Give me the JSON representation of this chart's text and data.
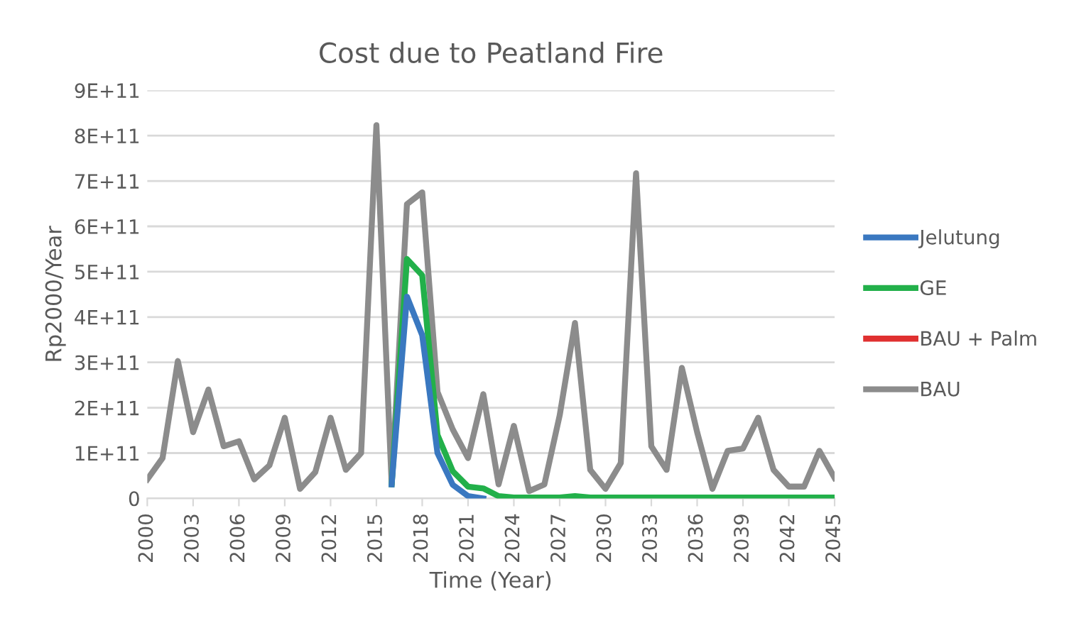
{
  "chart_data": {
    "type": "line",
    "title": "Cost due to Peatland Fire",
    "xlabel": "Time (Year)",
    "ylabel": "Rp2000/Year",
    "x": [
      2000,
      2001,
      2002,
      2003,
      2004,
      2005,
      2006,
      2007,
      2008,
      2009,
      2010,
      2011,
      2012,
      2013,
      2014,
      2015,
      2016,
      2017,
      2018,
      2019,
      2020,
      2021,
      2022,
      2023,
      2024,
      2025,
      2026,
      2027,
      2028,
      2029,
      2030,
      2031,
      2032,
      2033,
      2034,
      2035,
      2036,
      2037,
      2038,
      2039,
      2040,
      2041,
      2042,
      2043,
      2044,
      2045
    ],
    "series": [
      {
        "name": "Jelutung",
        "color": "#3a78c0",
        "values": [
          null,
          null,
          null,
          null,
          null,
          null,
          null,
          null,
          null,
          null,
          null,
          null,
          null,
          null,
          null,
          null,
          31000000000.0,
          445000000000.0,
          360000000000.0,
          100000000000.0,
          30000000000.0,
          5000000000.0,
          0,
          null,
          null,
          null,
          null,
          null,
          null,
          null,
          null,
          null,
          null,
          null,
          null,
          null,
          null,
          null,
          null,
          null,
          null,
          null,
          null,
          null,
          null,
          null
        ]
      },
      {
        "name": "GE",
        "color": "#22b04a",
        "values": [
          null,
          null,
          null,
          null,
          null,
          null,
          null,
          null,
          null,
          null,
          null,
          null,
          null,
          null,
          null,
          null,
          31000000000.0,
          528000000000.0,
          492000000000.0,
          140000000000.0,
          60000000000.0,
          26000000000.0,
          22000000000.0,
          5000000000.0,
          2000000000.0,
          2000000000.0,
          2000000000.0,
          2000000000.0,
          5000000000.0,
          2000000000.0,
          2000000000.0,
          2000000000.0,
          2000000000.0,
          2000000000.0,
          2000000000.0,
          2000000000.0,
          2000000000.0,
          2000000000.0,
          2000000000.0,
          2000000000.0,
          2000000000.0,
          2000000000.0,
          2000000000.0,
          2000000000.0,
          2000000000.0,
          2000000000.0
        ]
      },
      {
        "name": "BAU + Palm",
        "color": "#e03030",
        "values": [
          null,
          null,
          null,
          null,
          null,
          null,
          null,
          null,
          null,
          null,
          null,
          null,
          null,
          null,
          null,
          null,
          null,
          null,
          null,
          null,
          null,
          null,
          null,
          null,
          null,
          null,
          null,
          null,
          null,
          null,
          null,
          null,
          null,
          null,
          null,
          null,
          null,
          null,
          null,
          null,
          null,
          null,
          null,
          null,
          null,
          null
        ]
      },
      {
        "name": "BAU",
        "color": "#8c8c8c",
        "values": [
          42000000000.0,
          89000000000.0,
          303000000000.0,
          146000000000.0,
          240000000000.0,
          115000000000.0,
          126000000000.0,
          42000000000.0,
          73000000000.0,
          178000000000.0,
          21000000000.0,
          58000000000.0,
          178000000000.0,
          63000000000.0,
          100000000000.0,
          823000000000.0,
          31000000000.0,
          649000000000.0,
          675000000000.0,
          235000000000.0,
          152000000000.0,
          89000000000.0,
          230000000000.0,
          31000000000.0,
          160000000000.0,
          16000000000.0,
          31000000000.0,
          183000000000.0,
          387000000000.0,
          63000000000.0,
          21000000000.0,
          78000000000.0,
          717000000000.0,
          115000000000.0,
          63000000000.0,
          288000000000.0,
          146000000000.0,
          21000000000.0,
          105000000000.0,
          110000000000.0,
          178000000000.0,
          63000000000.0,
          26000000000.0,
          26000000000.0,
          105000000000.0,
          45000000000.0
        ]
      }
    ],
    "xlim": [
      2000,
      2045
    ],
    "xticks": [
      2000,
      2003,
      2006,
      2009,
      2012,
      2015,
      2018,
      2021,
      2024,
      2027,
      2030,
      2033,
      2036,
      2039,
      2042,
      2045
    ],
    "ylim": [
      0,
      900000000000.0
    ],
    "yticks": [
      {
        "value": 0,
        "label": "0"
      },
      {
        "value": 100000000000.0,
        "label": "1E+11"
      },
      {
        "value": 200000000000.0,
        "label": "2E+11"
      },
      {
        "value": 300000000000.0,
        "label": "3E+11"
      },
      {
        "value": 400000000000.0,
        "label": "4E+11"
      },
      {
        "value": 500000000000.0,
        "label": "5E+11"
      },
      {
        "value": 600000000000.0,
        "label": "6E+11"
      },
      {
        "value": 700000000000.0,
        "label": "7E+11"
      },
      {
        "value": 800000000000.0,
        "label": "8E+11"
      },
      {
        "value": 900000000000.0,
        "label": "9E+11"
      }
    ],
    "grid": "y",
    "legend": "right",
    "marker": "none",
    "line_style": "solid"
  }
}
